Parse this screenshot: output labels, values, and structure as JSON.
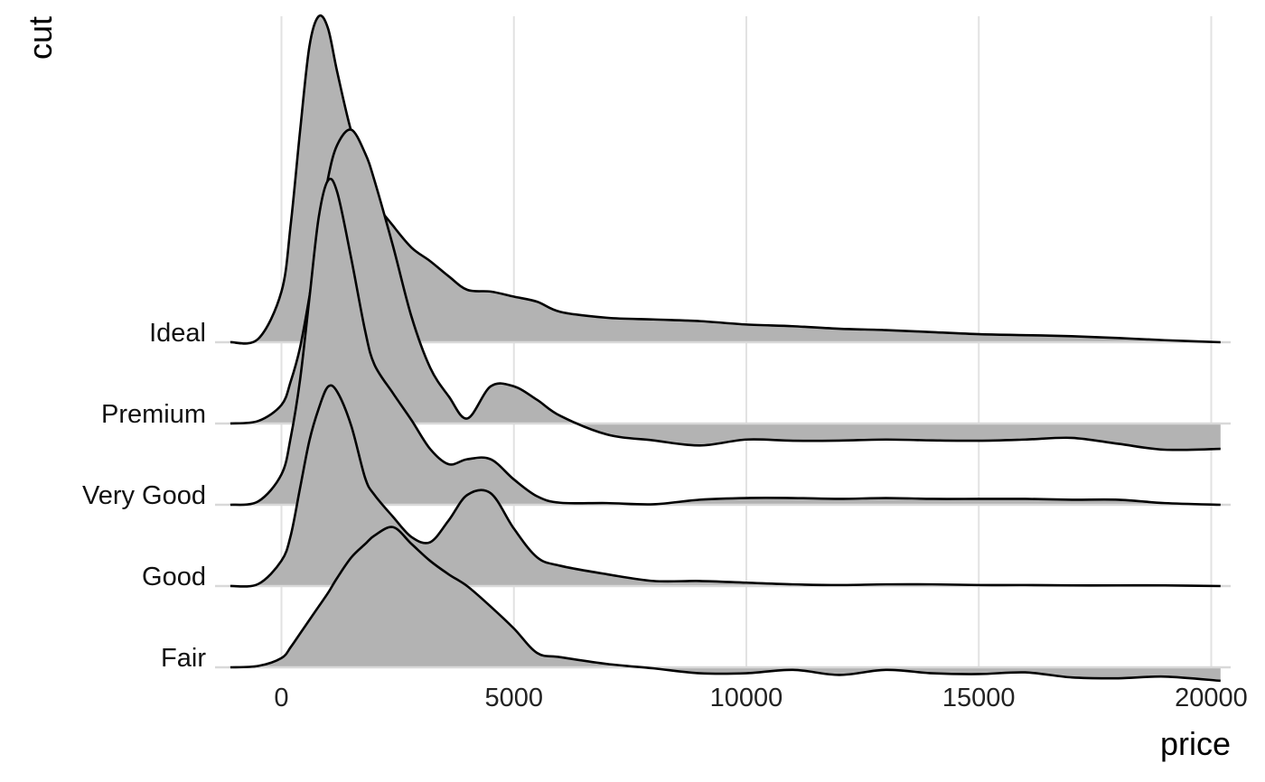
{
  "chart_data": {
    "type": "area",
    "xlabel": "price",
    "ylabel": "cut",
    "xlim": [
      -1100,
      20200
    ],
    "x_ticks": [
      0,
      5000,
      10000,
      15000,
      20000
    ],
    "x_tick_labels": [
      "0",
      "5000",
      "10000",
      "15000",
      "20000"
    ],
    "grid": "vertical",
    "fill_color": "#b3b3b3",
    "line_color": "#000000",
    "x": [
      -1100,
      -500,
      0,
      200,
      400,
      600,
      800,
      1000,
      1200,
      1500,
      1800,
      2000,
      2400,
      2800,
      3200,
      3600,
      4000,
      4500,
      5000,
      5500,
      6000,
      7000,
      8000,
      9000,
      10000,
      11000,
      12000,
      13000,
      14000,
      15000,
      16000,
      17000,
      18000,
      19000,
      20200
    ],
    "series": [
      {
        "name": "Fair",
        "values": [
          0,
          0.08,
          0.55,
          1.2,
          2.0,
          2.8,
          3.6,
          4.4,
          5.3,
          6.5,
          7.3,
          7.8,
          8.3,
          7.3,
          6.3,
          5.5,
          4.8,
          3.6,
          2.3,
          0.85,
          0.6,
          0.2,
          -0.06,
          -0.35,
          -0.35,
          -0.15,
          -0.45,
          -0.15,
          -0.35,
          -0.4,
          -0.3,
          -0.6,
          -0.65,
          -0.55,
          -0.8
        ]
      },
      {
        "name": "Good",
        "values": [
          0,
          0.12,
          1.5,
          3.0,
          5.8,
          8.6,
          10.5,
          11.8,
          11.5,
          9.5,
          6.4,
          5.4,
          4.1,
          2.9,
          2.6,
          3.9,
          5.4,
          5.5,
          3.4,
          1.7,
          1.2,
          0.7,
          0.3,
          0.3,
          0.2,
          0.1,
          0.06,
          0.1,
          0.1,
          0.06,
          0.06,
          0.04,
          0.04,
          0.04,
          0.0
        ]
      },
      {
        "name": "Very Good",
        "values": [
          0,
          0.2,
          1.8,
          4.0,
          7.4,
          12.2,
          17.0,
          19.2,
          18.5,
          14.6,
          10.3,
          8.3,
          6.6,
          5.0,
          3.3,
          2.4,
          2.7,
          2.7,
          1.5,
          0.5,
          0.12,
          0.1,
          0.03,
          0.3,
          0.4,
          0.4,
          0.35,
          0.4,
          0.35,
          0.35,
          0.35,
          0.3,
          0.3,
          0.1,
          0.0
        ]
      },
      {
        "name": "Premium",
        "values": [
          0,
          0.15,
          1.1,
          2.5,
          4.5,
          7.5,
          11.0,
          14.5,
          16.5,
          17.4,
          16.0,
          14.4,
          10.5,
          6.3,
          3.3,
          1.6,
          0.3,
          2.2,
          2.2,
          1.4,
          0.45,
          -0.65,
          -1.0,
          -1.3,
          -0.95,
          -1.02,
          -1.01,
          -0.95,
          -1.0,
          -1.02,
          -0.95,
          -0.85,
          -1.2,
          -1.55,
          -1.5
        ]
      },
      {
        "name": "Ideal",
        "values": [
          0,
          0.2,
          3.0,
          7.0,
          12.5,
          17.5,
          19.3,
          18.6,
          16.0,
          12.5,
          10.2,
          8.4,
          6.9,
          5.6,
          4.8,
          3.9,
          3.1,
          3.0,
          2.7,
          2.4,
          1.8,
          1.45,
          1.35,
          1.25,
          1.05,
          0.95,
          0.8,
          0.72,
          0.6,
          0.48,
          0.42,
          0.36,
          0.25,
          0.12,
          0.0
        ]
      }
    ]
  }
}
